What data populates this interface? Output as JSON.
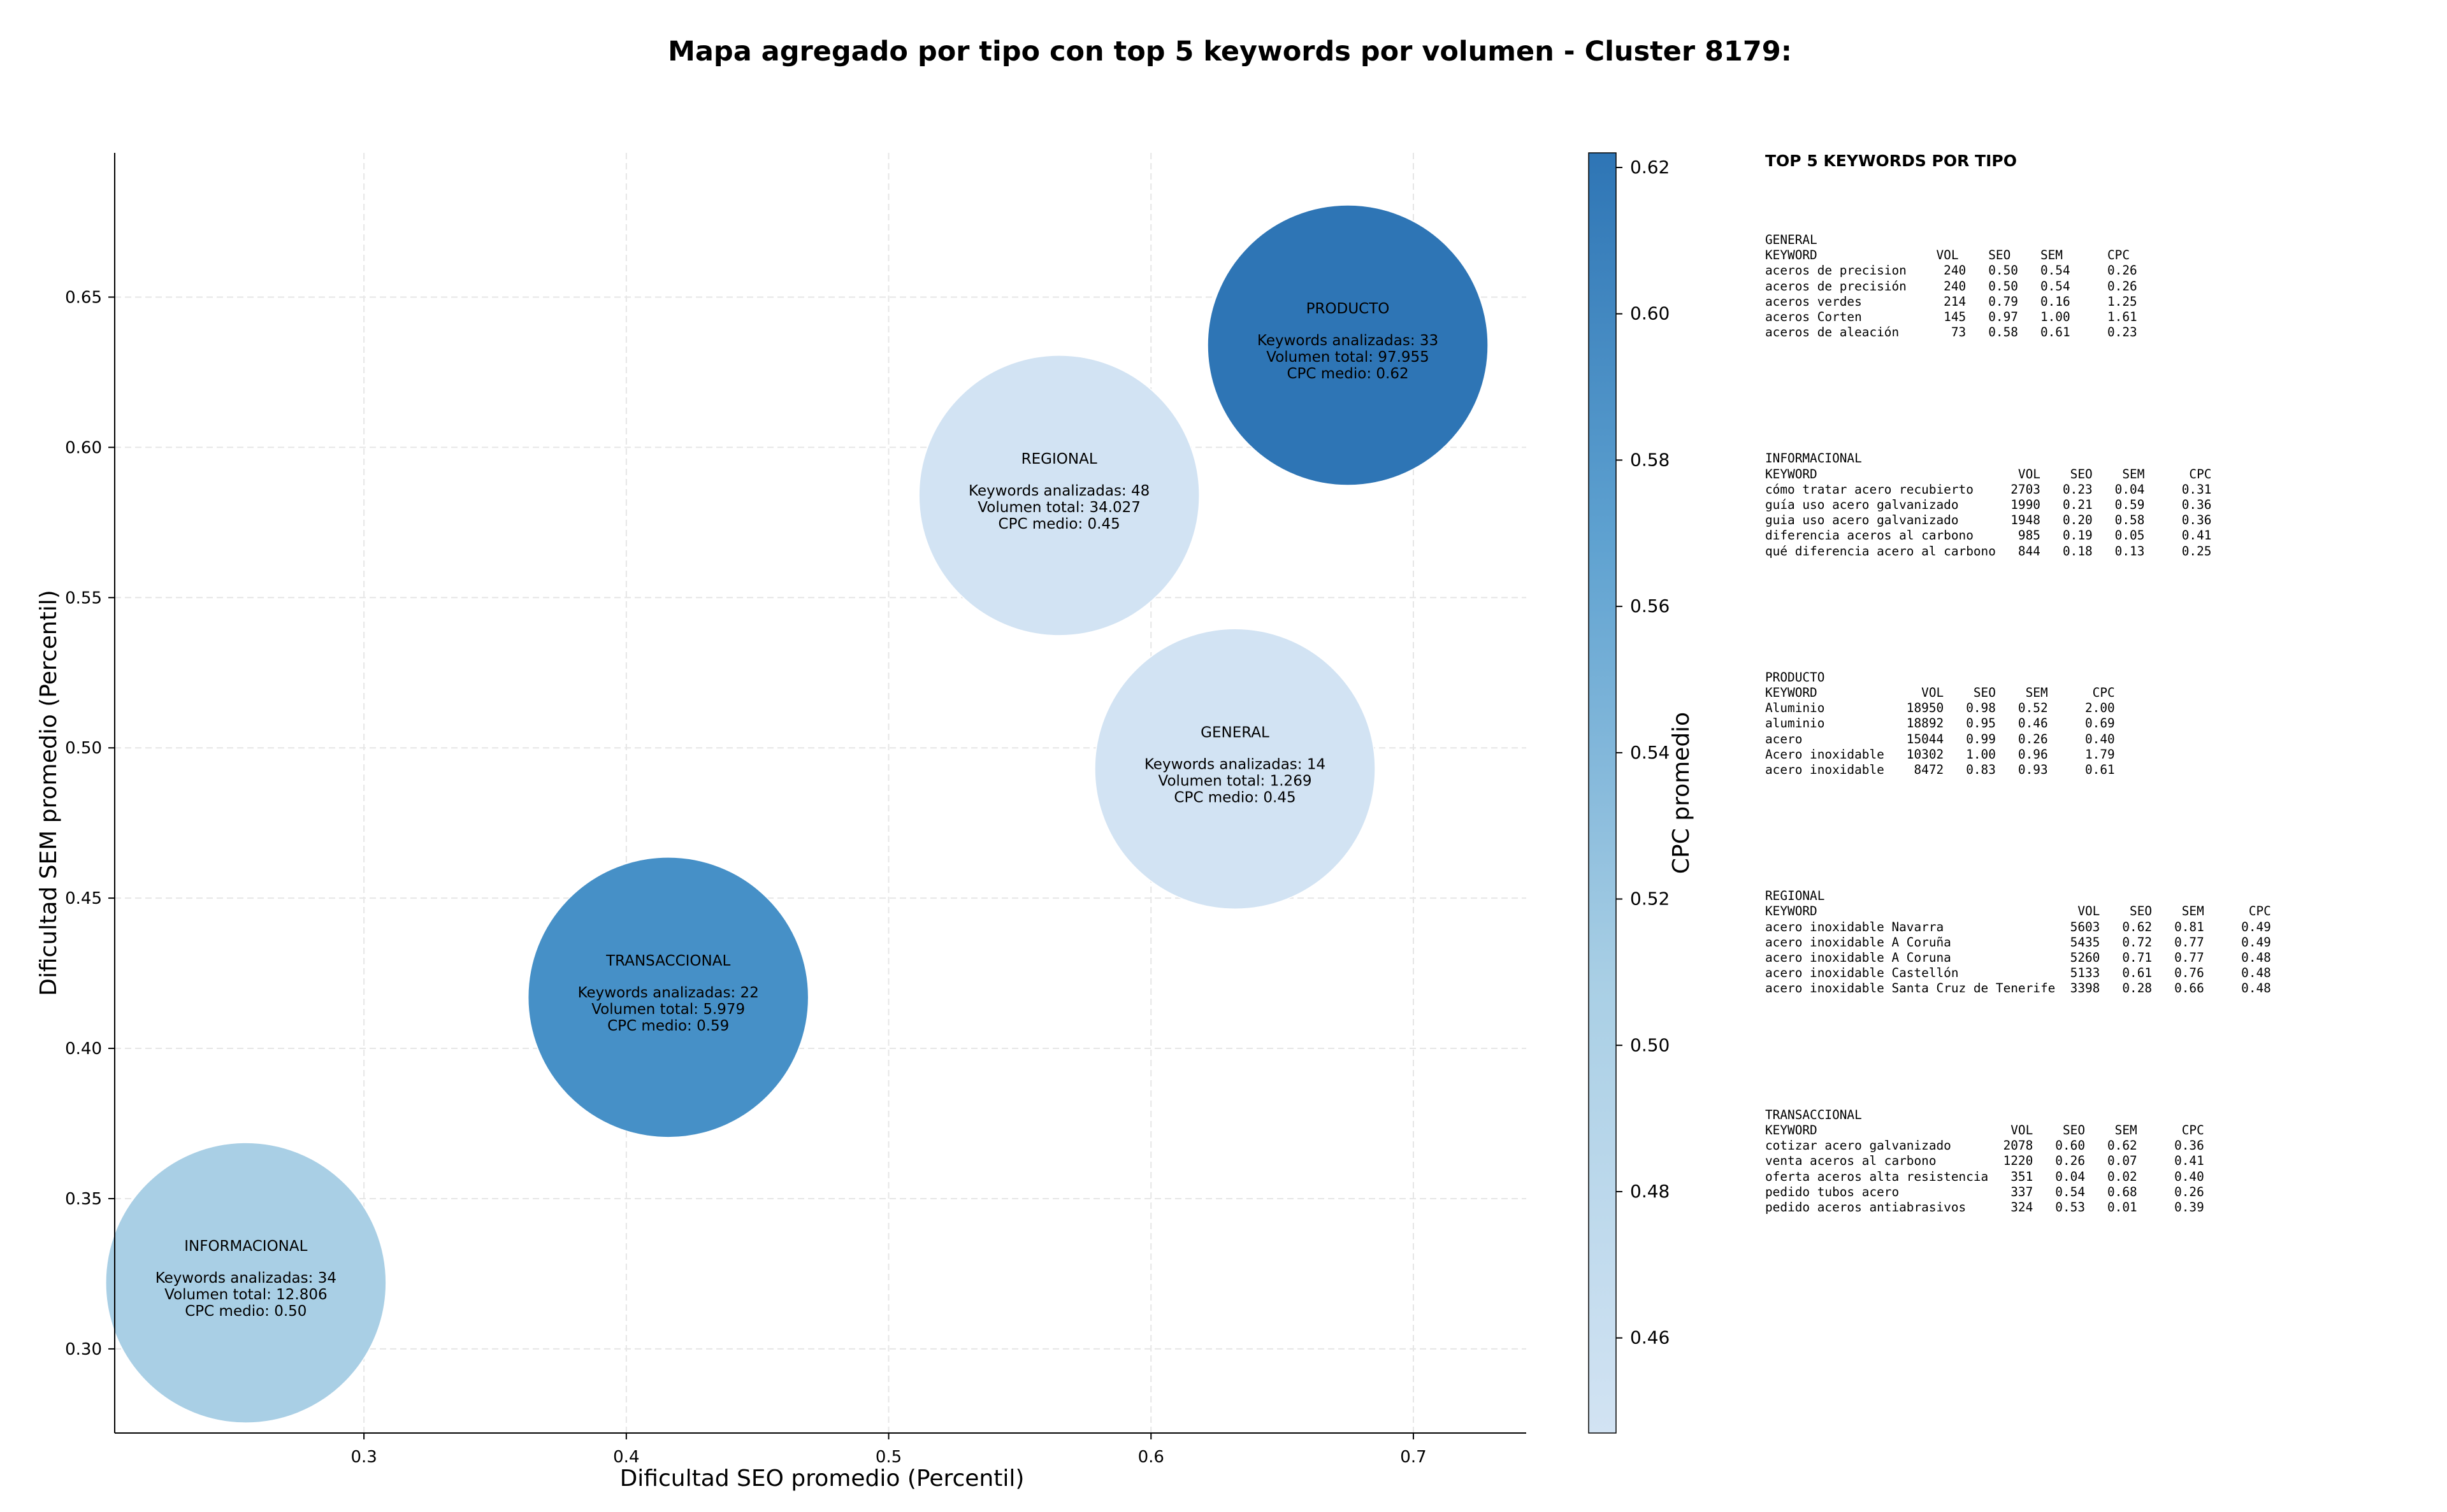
{
  "chart_data": {
    "type": "scatter",
    "title": "Mapa agregado por tipo con top 5 keywords por volumen - Cluster 8179:",
    "xlabel": "Dificultad SEO promedio (Percentil)",
    "ylabel": "Dificultad SEM promedio (Percentil)",
    "xlim": [
      0.205,
      0.743
    ],
    "ylim": [
      0.272,
      0.698
    ],
    "xticks": [
      0.3,
      0.4,
      0.5,
      0.6,
      0.7
    ],
    "xtick_labels": [
      "0.3",
      "0.4",
      "0.5",
      "0.6",
      "0.7"
    ],
    "yticks": [
      0.3,
      0.35,
      0.4,
      0.45,
      0.5,
      0.55,
      0.6,
      0.65
    ],
    "ytick_labels": [
      "0.30",
      "0.35",
      "0.40",
      "0.45",
      "0.50",
      "0.55",
      "0.60",
      "0.65"
    ],
    "grid": true,
    "colorbar": {
      "label": "CPC promedio",
      "range": [
        0.447,
        0.622
      ],
      "ticks": [
        0.46,
        0.48,
        0.5,
        0.52,
        0.54,
        0.56,
        0.58,
        0.6,
        0.62
      ],
      "tick_labels": [
        "0.46",
        "0.48",
        "0.50",
        "0.52",
        "0.54",
        "0.56",
        "0.58",
        "0.60",
        "0.62"
      ],
      "color_low": "#d2e3f3",
      "color_high": "#2e75b5"
    },
    "points": [
      {
        "type": "PRODUCTO",
        "x": 0.675,
        "y": 0.634,
        "keywords": 33,
        "volumen": "97.955",
        "cpc": 0.62,
        "cpc_label": "0.62",
        "color": "#2e75b5",
        "line1": "Keywords analizadas: 33",
        "line2": "Volumen total: 97.955",
        "line3": "CPC medio: 0.62"
      },
      {
        "type": "REGIONAL",
        "x": 0.565,
        "y": 0.584,
        "keywords": 48,
        "volumen": "34.027",
        "cpc": 0.45,
        "cpc_label": "0.45",
        "color": "#d2e3f3",
        "line1": "Keywords analizadas: 48",
        "line2": "Volumen total: 34.027",
        "line3": "CPC medio: 0.45"
      },
      {
        "type": "GENERAL",
        "x": 0.632,
        "y": 0.493,
        "keywords": 14,
        "volumen": "1.269",
        "cpc": 0.45,
        "cpc_label": "0.45",
        "color": "#d2e3f3",
        "line1": "Keywords analizadas: 14",
        "line2": "Volumen total: 1.269",
        "line3": "CPC medio: 0.45"
      },
      {
        "type": "TRANSACCIONAL",
        "x": 0.416,
        "y": 0.417,
        "keywords": 22,
        "volumen": "5.979",
        "cpc": 0.59,
        "cpc_label": "0.59",
        "color": "#4690c7",
        "line1": "Keywords analizadas: 22",
        "line2": "Volumen total: 5.979",
        "line3": "CPC medio: 0.59"
      },
      {
        "type": "INFORMACIONAL",
        "x": 0.255,
        "y": 0.322,
        "keywords": 34,
        "volumen": "12.806",
        "cpc": 0.5,
        "cpc_label": "0.50",
        "color": "#a9cfe5",
        "line1": "Keywords analizadas: 34",
        "line2": "Volumen total: 12.806",
        "line3": "CPC medio: 0.50"
      }
    ]
  },
  "top5_panel": {
    "title": "TOP 5 KEYWORDS POR TIPO",
    "groups": [
      {
        "name": "GENERAL",
        "header": "KEYWORD                VOL    SEO    SEM      CPC",
        "rows": [
          "aceros de precision     240   0.50   0.54     0.26",
          "aceros de precisión     240   0.50   0.54     0.26",
          "aceros verdes           214   0.79   0.16     1.25",
          "aceros Corten           145   0.97   1.00     1.61",
          "aceros de aleación       73   0.58   0.61     0.23"
        ]
      },
      {
        "name": "INFORMACIONAL",
        "header": "KEYWORD                           VOL    SEO    SEM      CPC",
        "rows": [
          "cómo tratar acero recubierto     2703   0.23   0.04     0.31",
          "guía uso acero galvanizado       1990   0.21   0.59     0.36",
          "guia uso acero galvanizado       1948   0.20   0.58     0.36",
          "diferencia aceros al carbono      985   0.19   0.05     0.41",
          "qué diferencia acero al carbono   844   0.18   0.13     0.25"
        ]
      },
      {
        "name": "PRODUCTO",
        "header": "KEYWORD              VOL    SEO    SEM      CPC",
        "rows": [
          "Aluminio           18950   0.98   0.52     2.00",
          "aluminio           18892   0.95   0.46     0.69",
          "acero              15044   0.99   0.26     0.40",
          "Acero inoxidable   10302   1.00   0.96     1.79",
          "acero inoxidable    8472   0.83   0.93     0.61"
        ]
      },
      {
        "name": "REGIONAL",
        "header": "KEYWORD                                   VOL    SEO    SEM      CPC",
        "rows": [
          "acero inoxidable Navarra                 5603   0.62   0.81     0.49",
          "acero inoxidable A Coruña                5435   0.72   0.77     0.49",
          "acero inoxidable A Coruna                5260   0.71   0.77     0.48",
          "acero inoxidable Castellón               5133   0.61   0.76     0.48",
          "acero inoxidable Santa Cruz de Tenerife  3398   0.28   0.66     0.48"
        ]
      },
      {
        "name": "TRANSACCIONAL",
        "header": "KEYWORD                          VOL    SEO    SEM      CPC",
        "rows": [
          "cotizar acero galvanizado       2078   0.60   0.62     0.36",
          "venta aceros al carbono         1220   0.26   0.07     0.41",
          "oferta aceros alta resistencia   351   0.04   0.02     0.40",
          "pedido tubos acero               337   0.54   0.68     0.26",
          "pedido aceros antiabrasivos      324   0.53   0.01     0.39"
        ]
      }
    ]
  }
}
